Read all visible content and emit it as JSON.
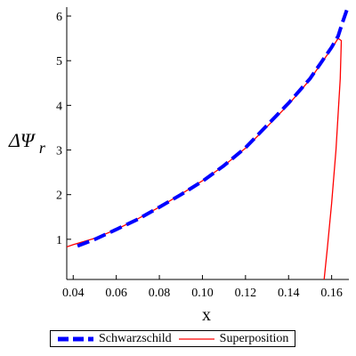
{
  "chart_data": {
    "type": "line",
    "xlabel": "x",
    "ylabel_main": "ΔΨ",
    "ylabel_sub": "r",
    "xlim": [
      0.037,
      0.168
    ],
    "ylim": [
      0.1,
      6.2
    ],
    "xticks": [
      0.04,
      0.06,
      0.08,
      0.1,
      0.12,
      0.14,
      0.16
    ],
    "xtick_labels": [
      "0.04",
      "0.06",
      "0.08",
      "0.10",
      "0.12",
      "0.14",
      "0.16"
    ],
    "yticks": [
      1,
      2,
      3,
      4,
      5,
      6
    ],
    "ytick_labels": [
      "1",
      "2",
      "3",
      "4",
      "5",
      "6"
    ],
    "legend_position": "bottom",
    "series": [
      {
        "name": "Schwarzschild",
        "color": "#0000ff",
        "style": "dash",
        "x": [
          0.042,
          0.05,
          0.06,
          0.07,
          0.08,
          0.09,
          0.1,
          0.11,
          0.12,
          0.13,
          0.14,
          0.15,
          0.155,
          0.16,
          0.163,
          0.165,
          0.1675
        ],
        "y": [
          0.85,
          1.0,
          1.22,
          1.45,
          1.72,
          2.0,
          2.3,
          2.65,
          3.05,
          3.55,
          4.05,
          4.6,
          4.95,
          5.3,
          5.55,
          5.85,
          6.2
        ]
      },
      {
        "name": "Superposition",
        "color": "#ff0000",
        "style": "solid",
        "x": [
          0.037,
          0.04,
          0.05,
          0.06,
          0.07,
          0.08,
          0.09,
          0.1,
          0.11,
          0.12,
          0.13,
          0.14,
          0.15,
          0.155,
          0.16,
          0.163,
          0.1645,
          0.164,
          0.162,
          0.16,
          0.158,
          0.1565
        ],
        "y": [
          0.83,
          0.88,
          1.02,
          1.22,
          1.46,
          1.72,
          2.01,
          2.31,
          2.65,
          3.04,
          3.52,
          4.02,
          4.58,
          4.93,
          5.27,
          5.5,
          5.45,
          4.6,
          3.0,
          1.8,
          0.8,
          0.1
        ]
      }
    ]
  },
  "legend": {
    "items": [
      {
        "label": "Schwarzschild",
        "color": "#0000ff"
      },
      {
        "label": "Superposition",
        "color": "#ff0000"
      }
    ]
  }
}
